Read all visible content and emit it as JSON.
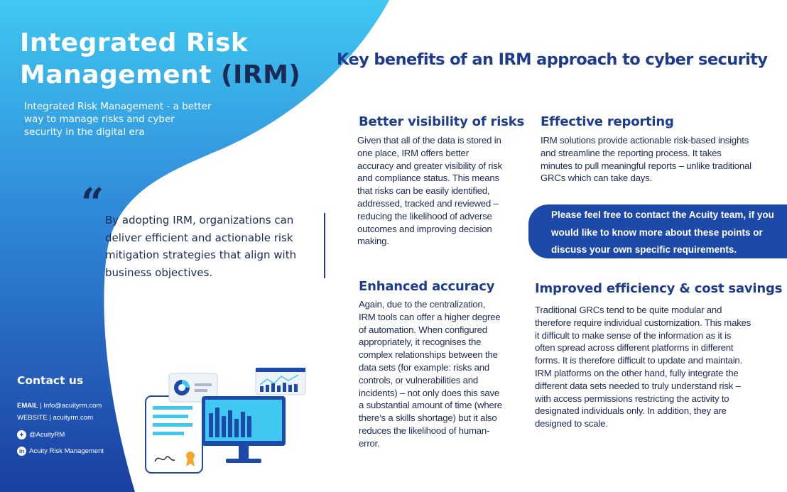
{
  "header": {
    "title_line1": "Integrated Risk",
    "title_line2_main": "Management ",
    "title_line2_abbr": "(IRM)",
    "subtitle": "Integrated Risk Management - a better way to manage risks and cyber security in the digital era",
    "main_heading": "Key benefits of an IRM approach to cyber security"
  },
  "quote": {
    "mark": "“",
    "text": "By adopting IRM, organizations can deliver efficient and actionable risk mitigation strategies that align with business objectives."
  },
  "sections": [
    {
      "title": "Better visibility of risks",
      "body": "Given that all of the data is stored in one place, IRM offers better accuracy and greater visibility of risk and compliance status. This means that risks can be easily identified, addressed, tracked and reviewed – reducing the likelihood of adverse outcomes and improving decision making."
    },
    {
      "title": "Effective reporting",
      "body": "IRM solutions provide actionable risk-based insights and streamline the reporting process. It takes minutes to pull meaningful reports – unlike traditional GRCs which can take days."
    },
    {
      "title": "Enhanced accuracy",
      "body": "Again, due to the centralization, IRM tools can offer a higher degree of automation. When configured appropriately, it recognises the complex relationships between the data sets (for example: risks and controls, or vulnerabilities and incidents) – not only does this save a substantial amount of time (where there’s a skills shortage) but it also reduces the likelihood of human-error."
    },
    {
      "title": "Improved efficiency & cost savings",
      "body": "Traditional GRCs tend to be quite modular and therefore require individual customization. This makes it difficult to make sense of the information as it is often spread across different platforms in different forms. It is therefore difficult to update and maintain. IRM platforms on the other hand, fully integrate the different data sets needed to truly understand risk – with access permissions restricting the activity to designated individuals only. In addition, they are designed to scale."
    }
  ],
  "cta": {
    "text": "Please feel free to contact the Acuity team, if you would like to know more about these points or discuss your own specific requirements."
  },
  "contact": {
    "title": "Contact us",
    "email_label": "EMAIL",
    "email_sep": " | ",
    "email": "Info@acuityrm.com",
    "website_label": "WEBSITE",
    "website_sep": " | ",
    "website": "acuityrm.com",
    "twitter": "@AcuityRM",
    "linkedin": "Acuity Risk Management",
    "twitter_icon": "twitter-icon",
    "linkedin_icon": "linkedin-icon",
    "linkedin_glyph": "in",
    "twitter_glyph": "✦"
  },
  "colors": {
    "brand_blue": "#1d4aa8",
    "light_blue": "#3fc8f0",
    "navy": "#1b2a55",
    "heading_blue": "#1d3c8c"
  }
}
